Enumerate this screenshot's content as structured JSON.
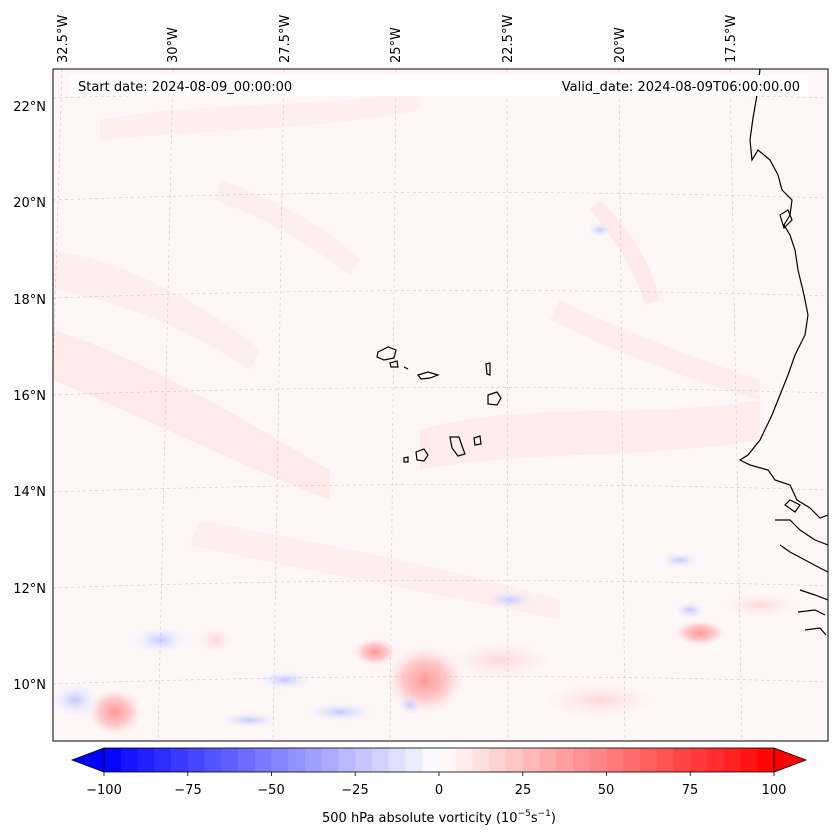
{
  "map": {
    "start_date": "Start date: 2024-08-09_00:00:00",
    "valid_date": "Valid_date: 2024-08-09T06:00:00.00",
    "lon_labels": [
      "32.5°W",
      "30°W",
      "27.5°W",
      "25°W",
      "22.5°W",
      "20°W",
      "17.5°W"
    ],
    "lat_labels": [
      "22°N",
      "20°N",
      "18°N",
      "16°N",
      "14°N",
      "12°N",
      "10°N"
    ],
    "colors": {
      "land_outline": "#000000",
      "gridline": "#c8c8c8",
      "background_field": "#fff6f6"
    }
  },
  "colorbar": {
    "tick_labels": [
      "−100",
      "−75",
      "−50",
      "−25",
      "0",
      "25",
      "50",
      "75",
      "100"
    ],
    "label_text": "500 hPa absolute vorticity (10",
    "label_exp1": "−5",
    "label_mid": "s",
    "label_exp2": "−1",
    "label_end": ")",
    "low_color": "#0000ff",
    "mid_color": "#ffffff",
    "high_color": "#ff0000",
    "vmin": -100,
    "vmax": 100
  }
}
